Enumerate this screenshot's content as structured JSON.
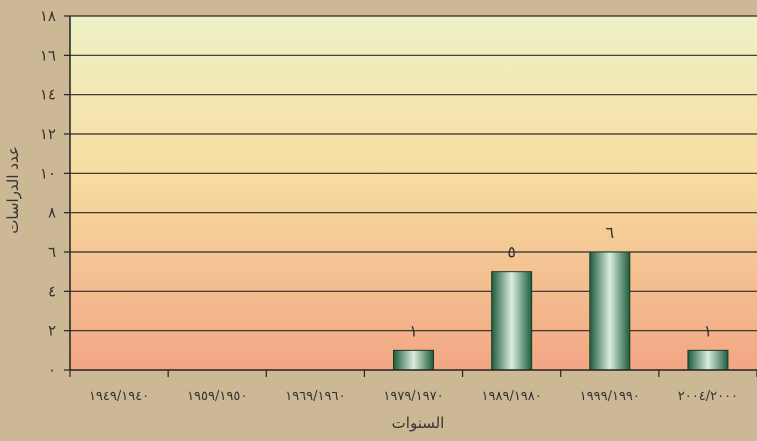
{
  "chart_data": {
    "type": "bar",
    "xlabel": "السنوات",
    "ylabel": "عدد الدراسات",
    "ylim": [
      0,
      18
    ],
    "yticks": [
      0,
      2,
      4,
      6,
      8,
      10,
      12,
      14,
      16,
      18
    ],
    "ytick_labels": [
      "٠",
      "٢",
      "٤",
      "٦",
      "٨",
      "١٠",
      "١٢",
      "١٤",
      "١٦",
      "١٨"
    ],
    "grid": true,
    "categories": [
      "١٩٤٩/١٩٤٠",
      "١٩٥٩/١٩٥٠",
      "١٩٦٩/١٩٦٠",
      "١٩٧٩/١٩٧٠",
      "١٩٨٩/١٩٨٠",
      "١٩٩٩/١٩٩٠",
      "٢٠٠٤/٢٠٠٠"
    ],
    "values": [
      0,
      0,
      0,
      1,
      5,
      6,
      1
    ],
    "data_labels": [
      "",
      "",
      "",
      "١",
      "٥",
      "٦",
      "١"
    ],
    "colors": {
      "page_background": "#cdb896",
      "plot_top": "#eef2c6",
      "plot_bottom": "#f2a684",
      "bar_dark": "#1f5c3c",
      "bar_light": "#d9eedd",
      "grid": "#2a2a2a"
    }
  }
}
